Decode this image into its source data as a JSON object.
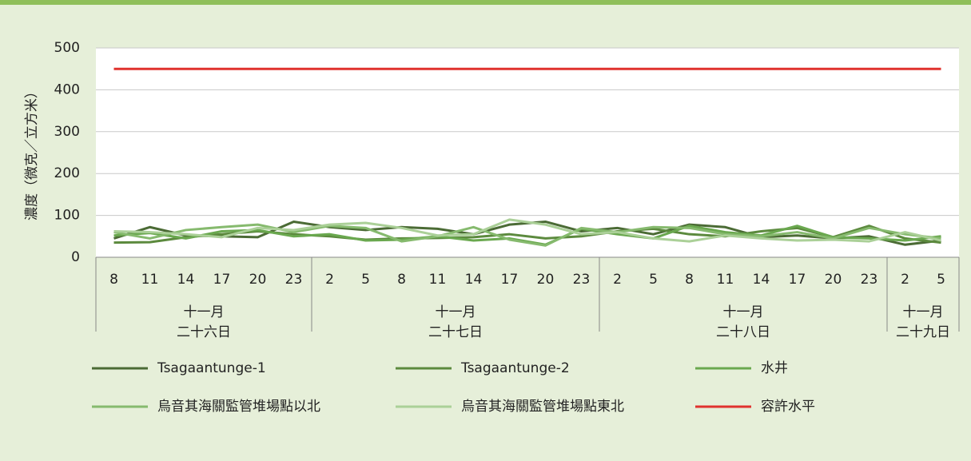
{
  "chart_data": {
    "type": "line",
    "y_label": "濃度（微克／立方米）",
    "groups": [
      {
        "month": "十一月",
        "day": "二十六日",
        "categories": [
          "8",
          "11",
          "14",
          "17",
          "20",
          "23"
        ]
      },
      {
        "month": "十一月",
        "day": "二十七日",
        "categories": [
          "2",
          "5",
          "8",
          "11",
          "14",
          "17",
          "20",
          "23"
        ]
      },
      {
        "month": "十一月",
        "day": "二十八日",
        "categories": [
          "2",
          "5",
          "8",
          "11",
          "14",
          "17",
          "20",
          "23"
        ]
      },
      {
        "month": "十一月",
        "day": "二十九日",
        "categories": [
          "2",
          "5"
        ]
      }
    ],
    "ylim": [
      0,
      500
    ],
    "yticks": [
      0,
      100,
      200,
      300,
      400,
      500
    ],
    "grid": true,
    "series": [
      {
        "name": "Tsagaantunge-1",
        "color": "#4b6b35",
        "values": [
          45,
          72,
          52,
          50,
          48,
          85,
          72,
          65,
          72,
          68,
          55,
          78,
          85,
          62,
          70,
          55,
          78,
          72,
          48,
          52,
          45,
          50,
          30,
          40
        ]
      },
      {
        "name": "Tsagaantunge-2",
        "color": "#5c8a3e",
        "values": [
          35,
          36,
          48,
          55,
          62,
          55,
          50,
          42,
          45,
          46,
          48,
          55,
          45,
          50,
          62,
          68,
          55,
          50,
          62,
          70,
          48,
          75,
          45,
          35
        ]
      },
      {
        "name": "水井",
        "color": "#6aa84f",
        "values": [
          52,
          58,
          45,
          62,
          65,
          50,
          55,
          40,
          42,
          50,
          40,
          45,
          30,
          68,
          55,
          45,
          75,
          60,
          52,
          75,
          48,
          45,
          40,
          50
        ]
      },
      {
        "name": "烏音其海關監管堆場點以北",
        "color": "#86ba6e",
        "values": [
          60,
          45,
          65,
          72,
          78,
          60,
          75,
          70,
          38,
          50,
          72,
          42,
          28,
          70,
          60,
          72,
          70,
          55,
          50,
          60,
          45,
          70,
          55,
          45
        ]
      },
      {
        "name": "烏音其海關監管堆場點東北",
        "color": "#abd098",
        "values": [
          62,
          60,
          55,
          48,
          70,
          65,
          78,
          82,
          70,
          52,
          55,
          90,
          78,
          55,
          60,
          45,
          38,
          52,
          45,
          40,
          42,
          38,
          60,
          40
        ]
      },
      {
        "name": "容許水平",
        "color": "#e0322e",
        "values": [
          450,
          450,
          450,
          450,
          450,
          450,
          450,
          450,
          450,
          450,
          450,
          450,
          450,
          450,
          450,
          450,
          450,
          450,
          450,
          450,
          450,
          450,
          450,
          450
        ]
      }
    ]
  }
}
